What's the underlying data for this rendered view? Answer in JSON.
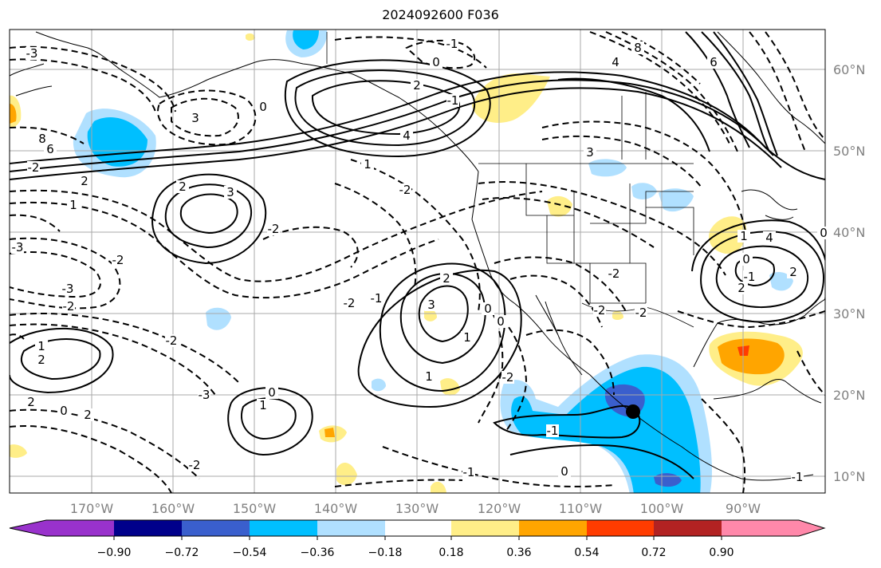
{
  "title": "2024092600 F036",
  "map": {
    "lon_labels": [
      "170°W",
      "160°W",
      "150°W",
      "140°W",
      "130°W",
      "120°W",
      "110°W",
      "100°W",
      "90°W"
    ],
    "lat_labels": [
      "60°N",
      "50°N",
      "40°N",
      "30°N",
      "20°N",
      "10°N"
    ],
    "marker": {
      "lon": -103.5,
      "lat": 18.0
    },
    "contour_labels": [
      "-1",
      "0",
      "2",
      "4",
      "8",
      "4",
      "6",
      "6",
      "8",
      "3",
      "1",
      "2",
      "0",
      "-3",
      "3",
      "-2",
      "1",
      "-1",
      "-2",
      "-3",
      "-2",
      "2",
      "-2",
      "-1",
      "-2",
      "1",
      "2",
      "3",
      "3",
      "2",
      "1",
      "-2",
      "-2",
      "-3",
      "-2",
      "1",
      "2",
      "0",
      "1",
      "0",
      "2",
      "0",
      "-1",
      "0",
      "0",
      "-2",
      "-1",
      "-2",
      "0",
      "-1",
      "-2",
      "-2",
      "4",
      "2",
      "2",
      "1",
      "0",
      "-1",
      "-3"
    ]
  },
  "colorbar": {
    "ticks": [
      "−0.90",
      "−0.72",
      "−0.54",
      "−0.36",
      "−0.18",
      "0.18",
      "0.36",
      "0.54",
      "0.72",
      "0.90"
    ],
    "colors": [
      "#9932cc",
      "#00008b",
      "#3a5fcd",
      "#00bfff",
      "#b0e0ff",
      "#ffffff",
      "#ffee88",
      "#ffa500",
      "#ff3c00",
      "#b22222",
      "#ff88aa"
    ]
  }
}
